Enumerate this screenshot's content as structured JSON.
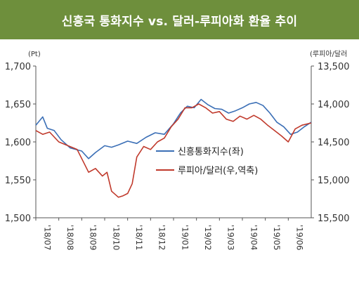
{
  "chart_data": {
    "type": "line",
    "title": "신흥국 통화지수 vs. 달러-루피아화 환율 추이",
    "y_left_unit": "(Pt)",
    "y_right_unit": "(루피아/달러",
    "y_left_ticks": [
      "1,700",
      "1,650",
      "1,600",
      "1,550",
      "1,500"
    ],
    "y_right_ticks": [
      "13,500",
      "14,000",
      "14,500",
      "15,000",
      "15,500"
    ],
    "y_left_range": [
      1500,
      1700
    ],
    "y_right_range": [
      13500,
      15500
    ],
    "y_right_inverted": true,
    "x_labels": [
      "'18/07",
      "'18/08",
      "'18/09",
      "'18/10",
      "'18/11",
      "'18/12",
      "'19/01",
      "'19/02",
      "'19/03",
      "'19/04",
      "'19/05",
      "'19/06"
    ],
    "x_range": [
      0,
      12
    ],
    "series": [
      {
        "name": "신흥통화지수(좌)",
        "axis": "left",
        "color": "#3b6fb6",
        "x": [
          0,
          0.3,
          0.5,
          0.8,
          1.1,
          1.5,
          2.0,
          2.3,
          2.6,
          3.0,
          3.3,
          3.6,
          4.0,
          4.4,
          4.8,
          5.2,
          5.6,
          6.0,
          6.3,
          6.6,
          6.9,
          7.2,
          7.5,
          7.8,
          8.1,
          8.4,
          8.7,
          9.0,
          9.3,
          9.6,
          9.9,
          10.2,
          10.5,
          10.8,
          11.1,
          11.4,
          11.7,
          12.0
        ],
        "y": [
          1622,
          1633,
          1618,
          1615,
          1603,
          1592,
          1588,
          1578,
          1586,
          1595,
          1593,
          1596,
          1601,
          1598,
          1606,
          1612,
          1610,
          1624,
          1638,
          1647,
          1645,
          1656,
          1649,
          1644,
          1643,
          1638,
          1641,
          1645,
          1650,
          1652,
          1648,
          1638,
          1626,
          1620,
          1610,
          1613,
          1620,
          1626
        ]
      },
      {
        "name": "루피아/달러(우,역축)",
        "axis": "right",
        "color": "#c0392b",
        "x": [
          0,
          0.3,
          0.6,
          1.0,
          1.4,
          1.8,
          2.1,
          2.3,
          2.6,
          2.9,
          3.1,
          3.3,
          3.6,
          3.8,
          4.0,
          4.2,
          4.4,
          4.7,
          5.0,
          5.3,
          5.6,
          5.9,
          6.2,
          6.5,
          6.8,
          7.1,
          7.4,
          7.7,
          8.0,
          8.3,
          8.6,
          8.9,
          9.2,
          9.5,
          9.8,
          10.1,
          10.4,
          10.7,
          11.0,
          11.3,
          11.6,
          12.0
        ],
        "y": [
          14350,
          14400,
          14370,
          14500,
          14550,
          14600,
          14780,
          14900,
          14850,
          14950,
          14900,
          15150,
          15230,
          15210,
          15180,
          15050,
          14700,
          14560,
          14600,
          14500,
          14450,
          14300,
          14200,
          14050,
          14050,
          14000,
          14050,
          14120,
          14100,
          14200,
          14230,
          14160,
          14200,
          14150,
          14200,
          14280,
          14350,
          14420,
          14500,
          14330,
          14280,
          14250
        ]
      }
    ],
    "legend_position": "center-right",
    "grid": false
  }
}
